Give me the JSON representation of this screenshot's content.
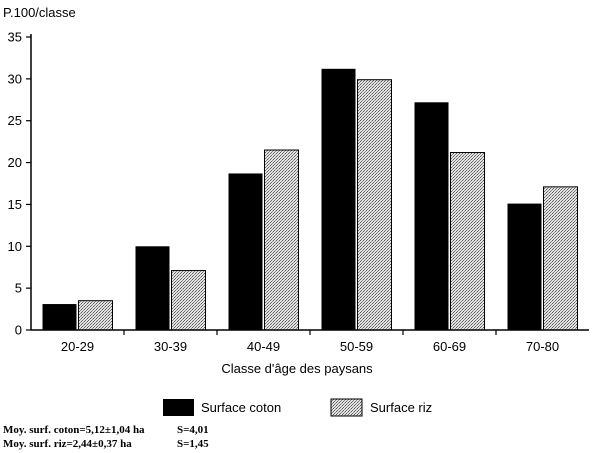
{
  "chart_data": {
    "type": "bar",
    "ylabel": "P.100/classe",
    "xlabel": "Classe d'âge des paysans",
    "categories": [
      "20-29",
      "30-39",
      "40-49",
      "50-59",
      "60-69",
      "70-80"
    ],
    "series": [
      {
        "name": "Surface coton",
        "values": [
          3.1,
          10.0,
          18.7,
          31.2,
          27.2,
          15.1
        ],
        "color": "#000000",
        "fill": "solid"
      },
      {
        "name": "Surface riz",
        "values": [
          3.5,
          7.1,
          21.5,
          29.9,
          21.2,
          17.1
        ],
        "color": "#cfcfcf",
        "fill": "stippled"
      }
    ],
    "ylim": [
      0,
      35
    ],
    "yticks": [
      0,
      5,
      10,
      15,
      20,
      25,
      30,
      35
    ],
    "grid": false,
    "legend": "bottom"
  },
  "notes": {
    "line1": {
      "label": "Moy. surf. coton=5,12±1,04 ha",
      "stat": "S=4,01"
    },
    "line2": {
      "label": "Moy. surf. riz=2,44±0,37 ha",
      "stat": "S=1,45"
    }
  }
}
